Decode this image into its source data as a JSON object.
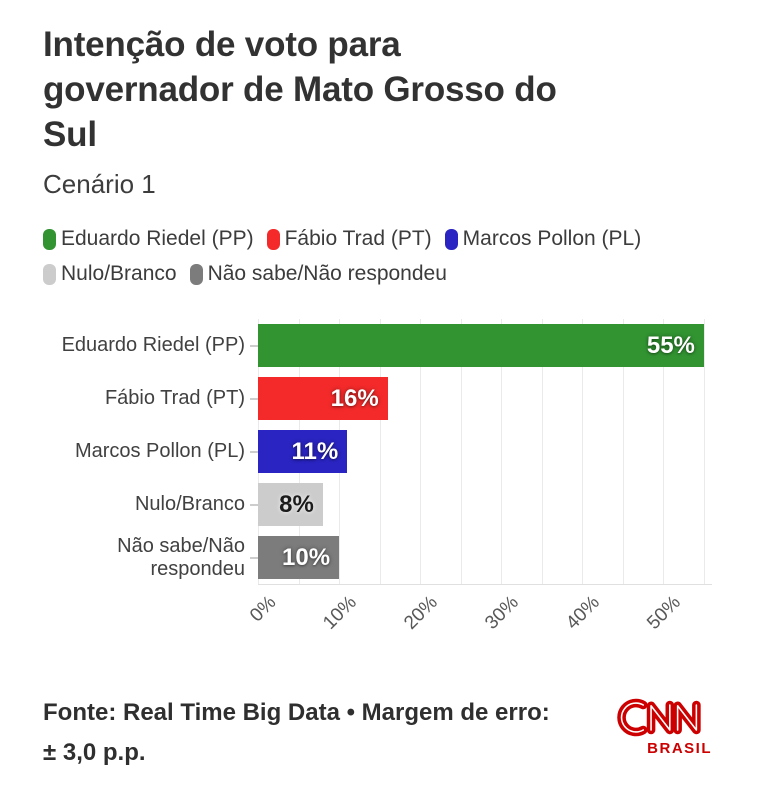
{
  "header": {
    "title_lines": [
      "Intenção de voto para",
      "governador de Mato Grosso do",
      "Sul"
    ],
    "subtitle": "Cenário 1"
  },
  "legend": {
    "items": [
      {
        "label": "Eduardo Riedel (PP)",
        "color": "#319431"
      },
      {
        "label": "Fábio Trad (PT)",
        "color": "#f42a2a"
      },
      {
        "label": "Marcos Pollon (PL)",
        "color": "#2a24c2"
      },
      {
        "label": "Nulo/Branco",
        "color": "#cccccc"
      },
      {
        "label": "Não sabe/Não respondeu",
        "color": "#7c7c7c"
      }
    ]
  },
  "chart_data": {
    "type": "bar",
    "orientation": "horizontal",
    "title": "Intenção de voto para governador de Mato Grosso do Sul",
    "subtitle": "Cenário 1",
    "categories": [
      "Eduardo Riedel (PP)",
      "Fábio Trad (PT)",
      "Marcos Pollon (PL)",
      "Nulo/Branco",
      "Não sabe/Não respondeu"
    ],
    "category_label_lines": [
      [
        "Eduardo Riedel (PP)"
      ],
      [
        "Fábio Trad (PT)"
      ],
      [
        "Marcos Pollon (PL)"
      ],
      [
        "Nulo/Branco"
      ],
      [
        "Não sabe/Não",
        "respondeu"
      ]
    ],
    "values": [
      55,
      16,
      11,
      8,
      10
    ],
    "value_labels": [
      "55%",
      "16%",
      "11%",
      "8%",
      "10%"
    ],
    "bar_colors": [
      "#319431",
      "#f42a2a",
      "#2a24c2",
      "#cccccc",
      "#7c7c7c"
    ],
    "value_label_colors": [
      "#ffffff",
      "#ffffff",
      "#ffffff",
      "#1b1b1b",
      "#ffffff"
    ],
    "xlim": [
      0,
      56
    ],
    "gridline_step": 5,
    "grid": true,
    "legend_position": "top",
    "x_ticks": [
      {
        "value": 0,
        "label": "0%"
      },
      {
        "value": 10,
        "label": "10%"
      },
      {
        "value": 20,
        "label": "20%"
      },
      {
        "value": 30,
        "label": "30%"
      },
      {
        "value": 40,
        "label": "40%"
      },
      {
        "value": 50,
        "label": "50%"
      }
    ]
  },
  "footer": {
    "lines": [
      "Fonte: Real Time Big Data • Margem de erro:",
      "± 3,0 p.p."
    ],
    "logo": {
      "brand": "CNN",
      "region": "BRASIL",
      "color": "#cc0000"
    }
  }
}
